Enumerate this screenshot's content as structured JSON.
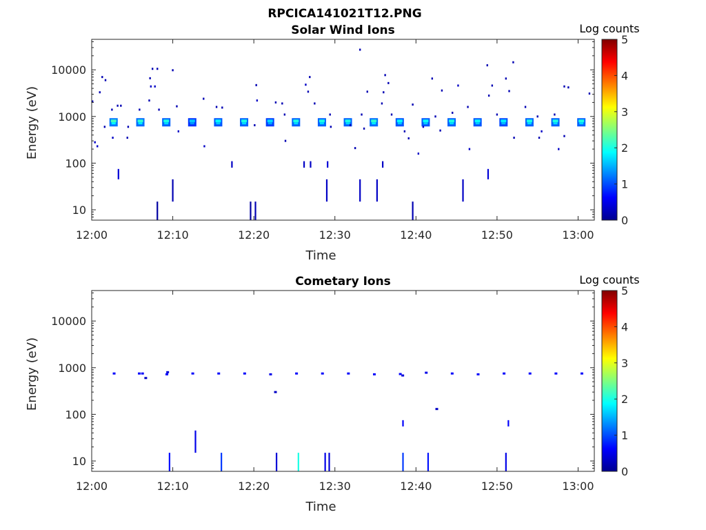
{
  "figure_title": "RPCICA141021T12.PNG",
  "colormap": [
    "#00008f",
    "#0000ff",
    "#00ffff",
    "#ffff00",
    "#ff0000",
    "#800000"
  ],
  "chart_data": [
    {
      "type": "heatmap",
      "title": "Solar Wind Ions",
      "xlabel": "Time",
      "ylabel": "Energy (eV)",
      "yscale": "log",
      "ylim": [
        6,
        45000
      ],
      "xlim_minutes": [
        0,
        62
      ],
      "x_ticks": [
        "12:00",
        "12:10",
        "12:20",
        "12:30",
        "12:40",
        "12:50",
        "13:00"
      ],
      "y_ticks": [
        "10",
        "100",
        "1000",
        "10000"
      ],
      "colorbar": {
        "label": "Log counts",
        "ticks": [
          "0",
          "1",
          "2",
          "3",
          "4",
          "5"
        ],
        "range": [
          0,
          5
        ]
      },
      "cells": [
        {
          "t": 2.7,
          "e": 750,
          "v": 2.2
        },
        {
          "t": 6.0,
          "e": 750,
          "v": 2.1
        },
        {
          "t": 9.2,
          "e": 750,
          "v": 2.0
        },
        {
          "t": 12.4,
          "e": 750,
          "v": 1.6
        },
        {
          "t": 15.6,
          "e": 750,
          "v": 1.9
        },
        {
          "t": 18.8,
          "e": 750,
          "v": 2.0
        },
        {
          "t": 22.0,
          "e": 750,
          "v": 1.7
        },
        {
          "t": 25.2,
          "e": 750,
          "v": 2.0
        },
        {
          "t": 28.4,
          "e": 750,
          "v": 2.0
        },
        {
          "t": 31.6,
          "e": 750,
          "v": 2.0
        },
        {
          "t": 34.8,
          "e": 750,
          "v": 2.1
        },
        {
          "t": 38.0,
          "e": 750,
          "v": 1.9
        },
        {
          "t": 41.2,
          "e": 750,
          "v": 1.9
        },
        {
          "t": 44.4,
          "e": 750,
          "v": 2.0
        },
        {
          "t": 47.6,
          "e": 750,
          "v": 1.9
        },
        {
          "t": 50.8,
          "e": 750,
          "v": 1.8
        },
        {
          "t": 54.0,
          "e": 750,
          "v": 2.0
        },
        {
          "t": 57.2,
          "e": 750,
          "v": 2.0
        },
        {
          "t": 60.4,
          "e": 750,
          "v": 2.0
        }
      ],
      "scatter": [
        {
          "t": 0.1,
          "e": 2100,
          "v": 0.2
        },
        {
          "t": 0.4,
          "e": 280,
          "v": 0.3
        },
        {
          "t": 0.7,
          "e": 230,
          "v": 0.3
        },
        {
          "t": 1.0,
          "e": 3300,
          "v": 0.2
        },
        {
          "t": 1.3,
          "e": 7000,
          "v": 0.2
        },
        {
          "t": 1.6,
          "e": 600,
          "v": 0.2
        },
        {
          "t": 1.7,
          "e": 6000,
          "v": 0.2
        },
        {
          "t": 2.5,
          "e": 1400,
          "v": 0.2
        },
        {
          "t": 2.6,
          "e": 350,
          "v": 0.3
        },
        {
          "t": 3.2,
          "e": 1700,
          "v": 0.2
        },
        {
          "t": 3.6,
          "e": 1700,
          "v": 0.2
        },
        {
          "t": 4.4,
          "e": 350,
          "v": 0.2
        },
        {
          "t": 4.5,
          "e": 600,
          "v": 0.2
        },
        {
          "t": 5.9,
          "e": 1400,
          "v": 0.2
        },
        {
          "t": 7.1,
          "e": 2200,
          "v": 0.2
        },
        {
          "t": 7.2,
          "e": 6600,
          "v": 0.2
        },
        {
          "t": 7.3,
          "e": 4400,
          "v": 0.3
        },
        {
          "t": 7.5,
          "e": 10500,
          "v": 0.2
        },
        {
          "t": 7.8,
          "e": 4400,
          "v": 0.3
        },
        {
          "t": 8.1,
          "e": 10500,
          "v": 0.2
        },
        {
          "t": 8.3,
          "e": 1400,
          "v": 0.2
        },
        {
          "t": 10.0,
          "e": 9800,
          "v": 0.2
        },
        {
          "t": 10.7,
          "e": 480,
          "v": 0.3
        },
        {
          "t": 10.5,
          "e": 1650,
          "v": 0.2
        },
        {
          "t": 13.8,
          "e": 2400,
          "v": 0.2
        },
        {
          "t": 13.9,
          "e": 230,
          "v": 0.3
        },
        {
          "t": 15.4,
          "e": 1600,
          "v": 0.2
        },
        {
          "t": 16.1,
          "e": 1550,
          "v": 0.2
        },
        {
          "t": 20.3,
          "e": 4700,
          "v": 0.2
        },
        {
          "t": 20.4,
          "e": 2200,
          "v": 0.3
        },
        {
          "t": 20.1,
          "e": 650,
          "v": 0.2
        },
        {
          "t": 22.7,
          "e": 2000,
          "v": 0.2
        },
        {
          "t": 23.5,
          "e": 1900,
          "v": 0.2
        },
        {
          "t": 23.8,
          "e": 1100,
          "v": 0.2
        },
        {
          "t": 23.9,
          "e": 300,
          "v": 0.2
        },
        {
          "t": 26.4,
          "e": 4800,
          "v": 0.3
        },
        {
          "t": 26.9,
          "e": 7000,
          "v": 0.2
        },
        {
          "t": 26.7,
          "e": 3400,
          "v": 0.2
        },
        {
          "t": 27.5,
          "e": 1900,
          "v": 0.2
        },
        {
          "t": 29.4,
          "e": 1100,
          "v": 0.2
        },
        {
          "t": 29.5,
          "e": 600,
          "v": 0.2
        },
        {
          "t": 31.9,
          "e": 650,
          "v": 0.2
        },
        {
          "t": 32.5,
          "e": 210,
          "v": 0.2
        },
        {
          "t": 33.1,
          "e": 27000,
          "v": 0.2
        },
        {
          "t": 33.3,
          "e": 1100,
          "v": 0.2
        },
        {
          "t": 33.6,
          "e": 550,
          "v": 0.2
        },
        {
          "t": 34.0,
          "e": 3400,
          "v": 0.2
        },
        {
          "t": 35.8,
          "e": 1900,
          "v": 0.2
        },
        {
          "t": 36.0,
          "e": 3300,
          "v": 0.2
        },
        {
          "t": 36.2,
          "e": 7700,
          "v": 0.2
        },
        {
          "t": 36.6,
          "e": 5200,
          "v": 0.2
        },
        {
          "t": 37.0,
          "e": 1100,
          "v": 0.2
        },
        {
          "t": 38.6,
          "e": 480,
          "v": 0.2
        },
        {
          "t": 39.1,
          "e": 340,
          "v": 0.2
        },
        {
          "t": 39.6,
          "e": 1800,
          "v": 0.2
        },
        {
          "t": 40.3,
          "e": 160,
          "v": 0.3
        },
        {
          "t": 40.9,
          "e": 600,
          "v": 0.3
        },
        {
          "t": 42.0,
          "e": 6500,
          "v": 0.2
        },
        {
          "t": 42.4,
          "e": 1000,
          "v": 0.2
        },
        {
          "t": 43.0,
          "e": 500,
          "v": 0.2
        },
        {
          "t": 43.2,
          "e": 3600,
          "v": 0.2
        },
        {
          "t": 44.5,
          "e": 1200,
          "v": 0.2
        },
        {
          "t": 45.2,
          "e": 4600,
          "v": 0.3
        },
        {
          "t": 46.4,
          "e": 1600,
          "v": 0.2
        },
        {
          "t": 46.6,
          "e": 200,
          "v": 0.3
        },
        {
          "t": 48.8,
          "e": 12500,
          "v": 0.2
        },
        {
          "t": 49.0,
          "e": 2800,
          "v": 0.2
        },
        {
          "t": 49.4,
          "e": 4600,
          "v": 0.2
        },
        {
          "t": 50.0,
          "e": 1100,
          "v": 0.2
        },
        {
          "t": 51.1,
          "e": 6500,
          "v": 0.2
        },
        {
          "t": 51.5,
          "e": 3500,
          "v": 0.2
        },
        {
          "t": 52.0,
          "e": 14500,
          "v": 0.2
        },
        {
          "t": 52.1,
          "e": 350,
          "v": 0.2
        },
        {
          "t": 53.5,
          "e": 1600,
          "v": 0.2
        },
        {
          "t": 55.0,
          "e": 1000,
          "v": 0.2
        },
        {
          "t": 55.2,
          "e": 350,
          "v": 0.2
        },
        {
          "t": 55.5,
          "e": 480,
          "v": 0.3
        },
        {
          "t": 57.1,
          "e": 1100,
          "v": 0.2
        },
        {
          "t": 57.6,
          "e": 200,
          "v": 0.3
        },
        {
          "t": 58.3,
          "e": 4400,
          "v": 0.2
        },
        {
          "t": 58.8,
          "e": 4200,
          "v": 0.2
        },
        {
          "t": 58.3,
          "e": 380,
          "v": 0.2
        },
        {
          "t": 61.4,
          "e": 3100,
          "v": 0.2
        }
      ],
      "streaks": [
        {
          "t": 3.3,
          "elo": 45,
          "ehi": 75,
          "v": 0.4
        },
        {
          "t": 8.1,
          "elo": 6,
          "ehi": 15,
          "v": 0.1
        },
        {
          "t": 10.0,
          "elo": 15,
          "ehi": 45,
          "v": 0.2
        },
        {
          "t": 17.3,
          "elo": 80,
          "ehi": 110,
          "v": 0.3
        },
        {
          "t": 19.6,
          "elo": 6,
          "ehi": 15,
          "v": 0.1
        },
        {
          "t": 20.2,
          "elo": 6,
          "ehi": 15,
          "v": 0.2
        },
        {
          "t": 26.2,
          "elo": 80,
          "ehi": 110,
          "v": 0.3
        },
        {
          "t": 27.0,
          "elo": 80,
          "ehi": 110,
          "v": 0.3
        },
        {
          "t": 29.0,
          "elo": 15,
          "ehi": 45,
          "v": 0.3
        },
        {
          "t": 29.1,
          "elo": 80,
          "ehi": 110,
          "v": 0.4
        },
        {
          "t": 33.1,
          "elo": 15,
          "ehi": 45,
          "v": 0.3
        },
        {
          "t": 35.2,
          "elo": 15,
          "ehi": 45,
          "v": 0.3
        },
        {
          "t": 35.9,
          "elo": 80,
          "ehi": 110,
          "v": 0.3
        },
        {
          "t": 39.6,
          "elo": 6,
          "ehi": 15,
          "v": 0.2
        },
        {
          "t": 45.8,
          "elo": 15,
          "ehi": 45,
          "v": 0.3
        },
        {
          "t": 48.9,
          "elo": 45,
          "ehi": 75,
          "v": 0.4
        }
      ]
    },
    {
      "type": "heatmap",
      "title": "Cometary Ions",
      "xlabel": "Time",
      "ylabel": "Energy (eV)",
      "yscale": "log",
      "ylim": [
        6,
        45000
      ],
      "xlim_minutes": [
        0,
        62
      ],
      "x_ticks": [
        "12:00",
        "12:10",
        "12:20",
        "12:30",
        "12:40",
        "12:50",
        "13:00"
      ],
      "y_ticks": [
        "10",
        "100",
        "1000",
        "10000"
      ],
      "colorbar": {
        "label": "Log counts",
        "ticks": [
          "0",
          "1",
          "2",
          "3",
          "4",
          "5"
        ],
        "range": [
          0,
          5
        ]
      },
      "cells": [],
      "scatter": [
        {
          "t": 2.7,
          "e": 750,
          "v": 0.6
        },
        {
          "t": 5.8,
          "e": 750,
          "v": 0.6
        },
        {
          "t": 6.2,
          "e": 750,
          "v": 0.6
        },
        {
          "t": 6.6,
          "e": 600,
          "v": 0.3
        },
        {
          "t": 9.2,
          "e": 720,
          "v": 0.6
        },
        {
          "t": 9.3,
          "e": 800,
          "v": 0.4
        },
        {
          "t": 12.4,
          "e": 750,
          "v": 0.6
        },
        {
          "t": 15.6,
          "e": 750,
          "v": 0.6
        },
        {
          "t": 18.8,
          "e": 750,
          "v": 0.6
        },
        {
          "t": 22.0,
          "e": 720,
          "v": 0.5
        },
        {
          "t": 22.6,
          "e": 300,
          "v": 0.3
        },
        {
          "t": 25.2,
          "e": 750,
          "v": 0.6
        },
        {
          "t": 28.4,
          "e": 750,
          "v": 0.6
        },
        {
          "t": 31.6,
          "e": 750,
          "v": 0.6
        },
        {
          "t": 34.8,
          "e": 720,
          "v": 0.6
        },
        {
          "t": 38.0,
          "e": 730,
          "v": 0.6
        },
        {
          "t": 38.3,
          "e": 680,
          "v": 0.4
        },
        {
          "t": 41.2,
          "e": 780,
          "v": 0.5
        },
        {
          "t": 42.5,
          "e": 130,
          "v": 0.3
        },
        {
          "t": 44.4,
          "e": 750,
          "v": 0.6
        },
        {
          "t": 47.6,
          "e": 720,
          "v": 0.6
        },
        {
          "t": 50.8,
          "e": 750,
          "v": 0.6
        },
        {
          "t": 54.0,
          "e": 750,
          "v": 0.6
        },
        {
          "t": 57.2,
          "e": 750,
          "v": 0.6
        },
        {
          "t": 60.4,
          "e": 750,
          "v": 0.6
        }
      ],
      "streaks": [
        {
          "t": 9.6,
          "elo": 6,
          "ehi": 15,
          "v": 0.7
        },
        {
          "t": 12.8,
          "elo": 15,
          "ehi": 45,
          "v": 0.5
        },
        {
          "t": 16.0,
          "elo": 6,
          "ehi": 15,
          "v": 0.9
        },
        {
          "t": 22.8,
          "elo": 6,
          "ehi": 15,
          "v": 0.4
        },
        {
          "t": 25.5,
          "elo": 6,
          "ehi": 15,
          "v": 2.0
        },
        {
          "t": 28.8,
          "elo": 6,
          "ehi": 15,
          "v": 0.5
        },
        {
          "t": 29.3,
          "elo": 6,
          "ehi": 15,
          "v": 0.4
        },
        {
          "t": 38.4,
          "elo": 6,
          "ehi": 15,
          "v": 0.9
        },
        {
          "t": 38.4,
          "elo": 55,
          "ehi": 75,
          "v": 0.6
        },
        {
          "t": 41.5,
          "elo": 6,
          "ehi": 15,
          "v": 0.7
        },
        {
          "t": 51.1,
          "elo": 6,
          "ehi": 15,
          "v": 0.5
        },
        {
          "t": 51.4,
          "elo": 55,
          "ehi": 75,
          "v": 0.6
        }
      ]
    }
  ]
}
